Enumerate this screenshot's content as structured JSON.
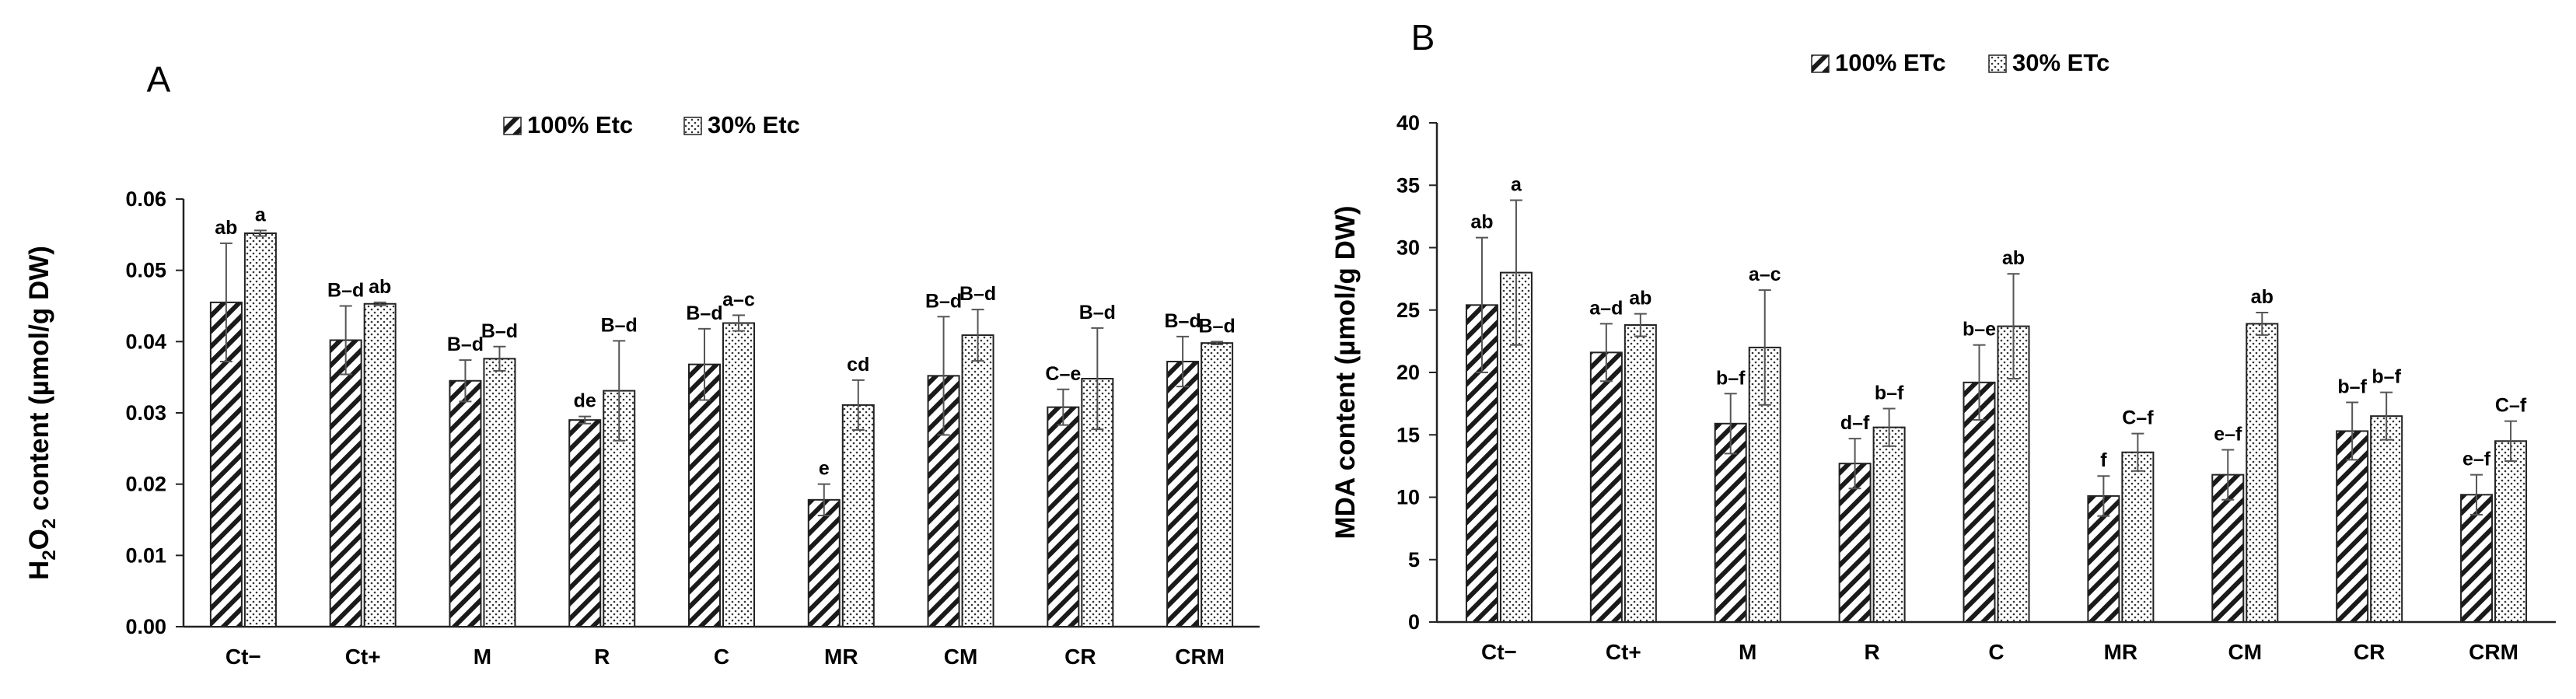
{
  "chart_data": [
    {
      "type": "bar",
      "panel_label": "A",
      "title": "",
      "xlabel": "",
      "ylabel": "H2O2 content (µmol/g DW)",
      "ylabel_parts": {
        "pre": "H",
        "sub1": "2",
        "mid": "O",
        "sub2": "2",
        "post": " content (µmol/g DW)"
      },
      "ylim": [
        0,
        0.06
      ],
      "yticks": [
        "0.00",
        "0.01",
        "0.02",
        "0.03",
        "0.04",
        "0.05",
        "0.06"
      ],
      "legend_position": "top-center",
      "categories": [
        "Ct−",
        "Ct+",
        "M",
        "R",
        "C",
        "MR",
        "CM",
        "CR",
        "CRM"
      ],
      "series": [
        {
          "name": "100% Etc",
          "pattern": "diagonal-hatch",
          "values": [
            0.0455,
            0.0402,
            0.0345,
            0.029,
            0.0368,
            0.0178,
            0.0352,
            0.0308,
            0.0372
          ],
          "errors": [
            0.0083,
            0.0048,
            0.0029,
            0.0005,
            0.005,
            0.0022,
            0.0083,
            0.0025,
            0.0035
          ],
          "letters": [
            "ab",
            "B–d",
            "B–d",
            "de",
            "B–d",
            "e",
            "B–d",
            "C–e",
            "B–d"
          ]
        },
        {
          "name": "30% Etc",
          "pattern": "dots",
          "values": [
            0.0552,
            0.0453,
            0.0376,
            0.0331,
            0.0426,
            0.0311,
            0.0409,
            0.0348,
            0.0398
          ],
          "errors": [
            0.0004,
            0.0002,
            0.0017,
            0.007,
            0.0011,
            0.0035,
            0.0036,
            0.0071,
            0.0002
          ],
          "letters": [
            "a",
            "ab",
            "B–d",
            "B–d",
            "a–c",
            "cd",
            "B–d",
            "B–d",
            "B–d"
          ]
        }
      ]
    },
    {
      "type": "bar",
      "panel_label": "B",
      "title": "",
      "xlabel": "",
      "ylabel": "MDA content (µmol/g DW)",
      "ylim": [
        0,
        40
      ],
      "yticks": [
        "0",
        "5",
        "10",
        "15",
        "20",
        "25",
        "30",
        "35",
        "40"
      ],
      "legend_position": "top-center",
      "categories": [
        "Ct−",
        "Ct+",
        "M",
        "R",
        "C",
        "MR",
        "CM",
        "CR",
        "CRM"
      ],
      "series": [
        {
          "name": "100% ETc",
          "pattern": "diagonal-hatch",
          "values": [
            25.4,
            21.6,
            15.9,
            12.7,
            19.2,
            10.1,
            11.8,
            15.3,
            10.2
          ],
          "errors": [
            5.4,
            2.3,
            2.4,
            2.0,
            3.0,
            1.6,
            2.0,
            2.3,
            1.6
          ],
          "letters": [
            "ab",
            "a–d",
            "b–f",
            "d–f",
            "b–e",
            "f",
            "e–f",
            "b–f",
            "e–f"
          ]
        },
        {
          "name": "30% ETc",
          "pattern": "dots",
          "values": [
            28.0,
            23.8,
            22.0,
            15.6,
            23.7,
            13.6,
            23.9,
            16.5,
            14.5
          ],
          "errors": [
            5.8,
            0.9,
            4.6,
            1.5,
            4.2,
            1.5,
            0.9,
            1.9,
            1.6
          ],
          "letters": [
            "a",
            "ab",
            "a–c",
            "b–f",
            "ab",
            "C–f",
            "ab",
            "b–f",
            "C–f"
          ]
        }
      ]
    }
  ]
}
